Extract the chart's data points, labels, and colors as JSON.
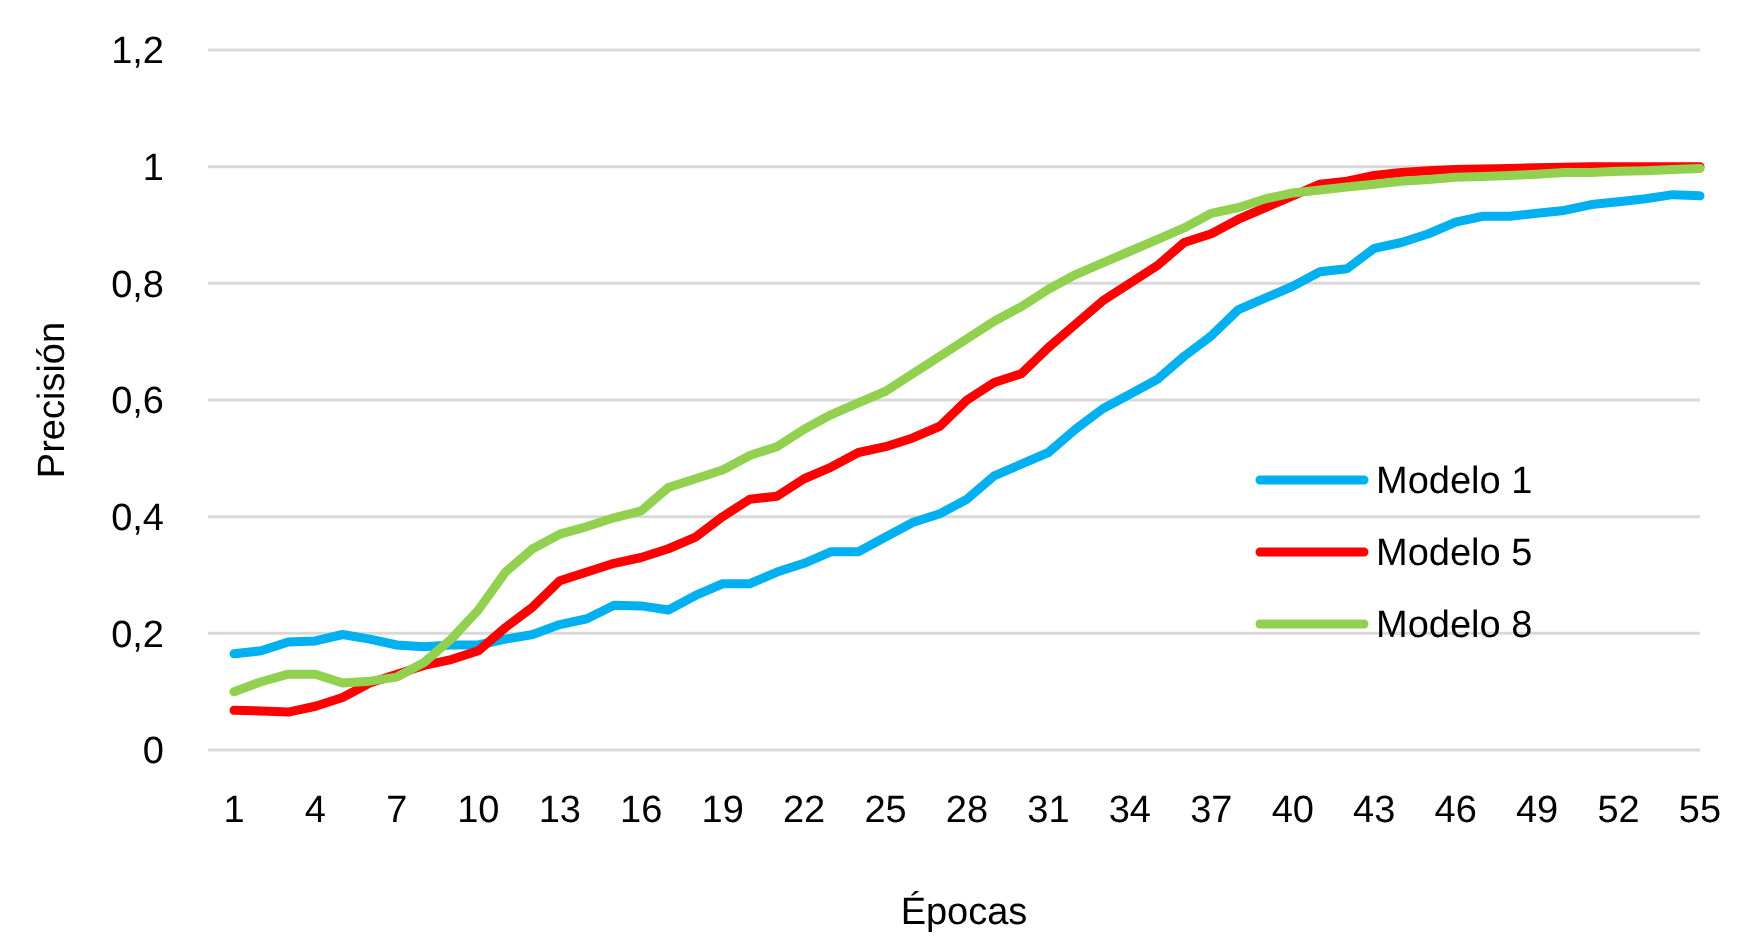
{
  "chart_data": {
    "type": "line",
    "xlabel": "Épocas",
    "ylabel": "Precisión",
    "categories": [
      "1",
      null,
      null,
      "4",
      null,
      null,
      "7",
      null,
      null,
      "10",
      null,
      null,
      "13",
      null,
      null,
      "16",
      null,
      null,
      "19",
      null,
      null,
      "22",
      null,
      null,
      "25",
      null,
      null,
      "28",
      null,
      null,
      "31",
      null,
      null,
      "34",
      null,
      null,
      "37",
      null,
      null,
      "40",
      null,
      null,
      "43",
      null,
      null,
      "46",
      null,
      null,
      "49",
      null,
      null,
      "52",
      null,
      null,
      "55"
    ],
    "series": [
      {
        "name": "Modelo 1",
        "color": "#00b0f0",
        "values": [
          0.165,
          0.17,
          0.185,
          0.187,
          0.198,
          0.19,
          0.18,
          0.177,
          0.18,
          0.18,
          0.19,
          0.198,
          0.215,
          0.225,
          0.248,
          0.247,
          0.24,
          0.265,
          0.285,
          0.285,
          0.305,
          0.32,
          0.34,
          0.34,
          0.365,
          0.39,
          0.405,
          0.43,
          0.47,
          0.49,
          0.51,
          0.55,
          0.585,
          0.61,
          0.635,
          0.675,
          0.71,
          0.755,
          0.775,
          0.795,
          0.82,
          0.825,
          0.86,
          0.87,
          0.885,
          0.905,
          0.915,
          0.915,
          0.92,
          0.925,
          0.935,
          0.94,
          0.945,
          0.952,
          0.95
        ]
      },
      {
        "name": "Modelo 5",
        "color": "#ff0000",
        "values": [
          0.068,
          0.067,
          0.065,
          0.075,
          0.09,
          0.115,
          0.13,
          0.145,
          0.155,
          0.17,
          0.21,
          0.245,
          0.29,
          0.305,
          0.32,
          0.33,
          0.345,
          0.365,
          0.4,
          0.43,
          0.435,
          0.465,
          0.485,
          0.51,
          0.52,
          0.535,
          0.555,
          0.6,
          0.63,
          0.645,
          0.69,
          0.73,
          0.77,
          0.8,
          0.83,
          0.87,
          0.885,
          0.91,
          0.93,
          0.95,
          0.97,
          0.975,
          0.985,
          0.99,
          0.993,
          0.995,
          0.996,
          0.997,
          0.998,
          0.999,
          1,
          1,
          1,
          1,
          1
        ]
      },
      {
        "name": "Modelo 8",
        "color": "#92d050",
        "values": [
          0.1,
          0.117,
          0.13,
          0.13,
          0.115,
          0.118,
          0.125,
          0.15,
          0.19,
          0.24,
          0.305,
          0.345,
          0.37,
          0.383,
          0.398,
          0.41,
          0.45,
          0.465,
          0.48,
          0.505,
          0.52,
          0.55,
          0.575,
          0.595,
          0.615,
          0.645,
          0.675,
          0.705,
          0.735,
          0.76,
          0.79,
          0.815,
          0.835,
          0.855,
          0.875,
          0.895,
          0.92,
          0.93,
          0.945,
          0.955,
          0.96,
          0.965,
          0.97,
          0.975,
          0.978,
          0.982,
          0.983,
          0.985,
          0.987,
          0.99,
          0.99,
          0.992,
          0.993,
          0.995,
          0.997
        ]
      }
    ],
    "ylim": [
      0,
      1.2
    ],
    "yticks": [
      0,
      {
        "value": 0.2,
        "label": "0,2"
      },
      {
        "value": 0.4,
        "label": "0,4"
      },
      {
        "value": 0.6,
        "label": "0,6"
      },
      {
        "value": 0.8,
        "label": "0,8"
      },
      1,
      {
        "value": 1.2,
        "label": "1,2"
      }
    ],
    "grid": "y",
    "legend": "right",
    "marker": "none",
    "line_style": "solid"
  }
}
